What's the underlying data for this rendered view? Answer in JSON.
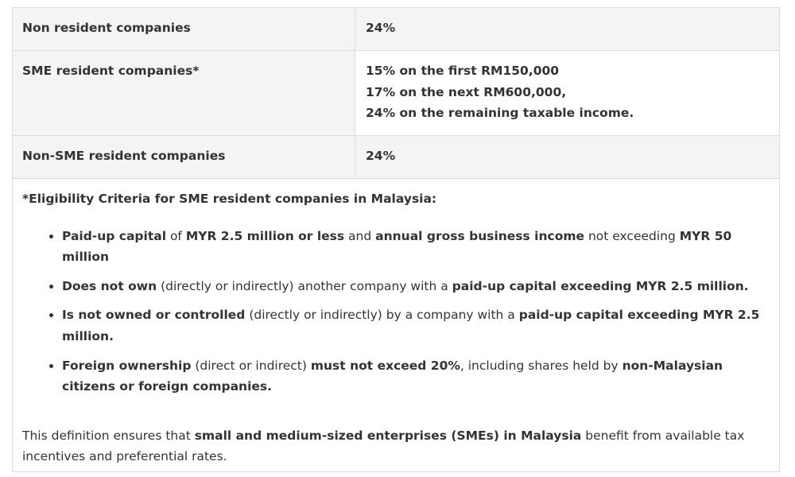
{
  "table": {
    "rows": [
      {
        "category": "Non resident companies",
        "rate_lines": [
          "24%"
        ]
      },
      {
        "category": "SME resident companies*",
        "rate_lines": [
          "15% on the first RM150,000",
          "17% on the next RM600,000,",
          "24% on the remaining taxable income."
        ]
      },
      {
        "category": "Non-SME resident companies",
        "rate_lines": [
          "24%"
        ]
      }
    ]
  },
  "eligibility": {
    "title": "*Eligibility Criteria for SME resident companies in Malaysia:",
    "items": [
      [
        {
          "b": true,
          "t": "Paid-up capital"
        },
        {
          "b": false,
          "t": " of "
        },
        {
          "b": true,
          "t": "MYR 2.5 million or less"
        },
        {
          "b": false,
          "t": " and "
        },
        {
          "b": true,
          "t": "annual gross business income"
        },
        {
          "b": false,
          "t": " not exceeding "
        },
        {
          "b": true,
          "t": "MYR 50 million"
        }
      ],
      [
        {
          "b": true,
          "t": "Does not own"
        },
        {
          "b": false,
          "t": " (directly or indirectly) another company with a "
        },
        {
          "b": true,
          "t": "paid-up capital exceeding MYR 2.5 million."
        }
      ],
      [
        {
          "b": true,
          "t": "Is not owned or controlled"
        },
        {
          "b": false,
          "t": " (directly or indirectly) by a company with a "
        },
        {
          "b": true,
          "t": "paid-up capital exceeding MYR 2.5 million."
        }
      ],
      [
        {
          "b": true,
          "t": "Foreign ownership"
        },
        {
          "b": false,
          "t": " (direct or indirect) "
        },
        {
          "b": true,
          "t": "must not exceed 20%"
        },
        {
          "b": false,
          "t": ", including shares held by "
        },
        {
          "b": true,
          "t": "non-Malaysian citizens or foreign companies."
        }
      ]
    ]
  },
  "summary": [
    {
      "b": false,
      "t": "This definition ensures that "
    },
    {
      "b": true,
      "t": "small and medium-sized enterprises (SMEs) in Malaysia"
    },
    {
      "b": false,
      "t": " benefit from available tax incentives and preferential rates."
    }
  ]
}
